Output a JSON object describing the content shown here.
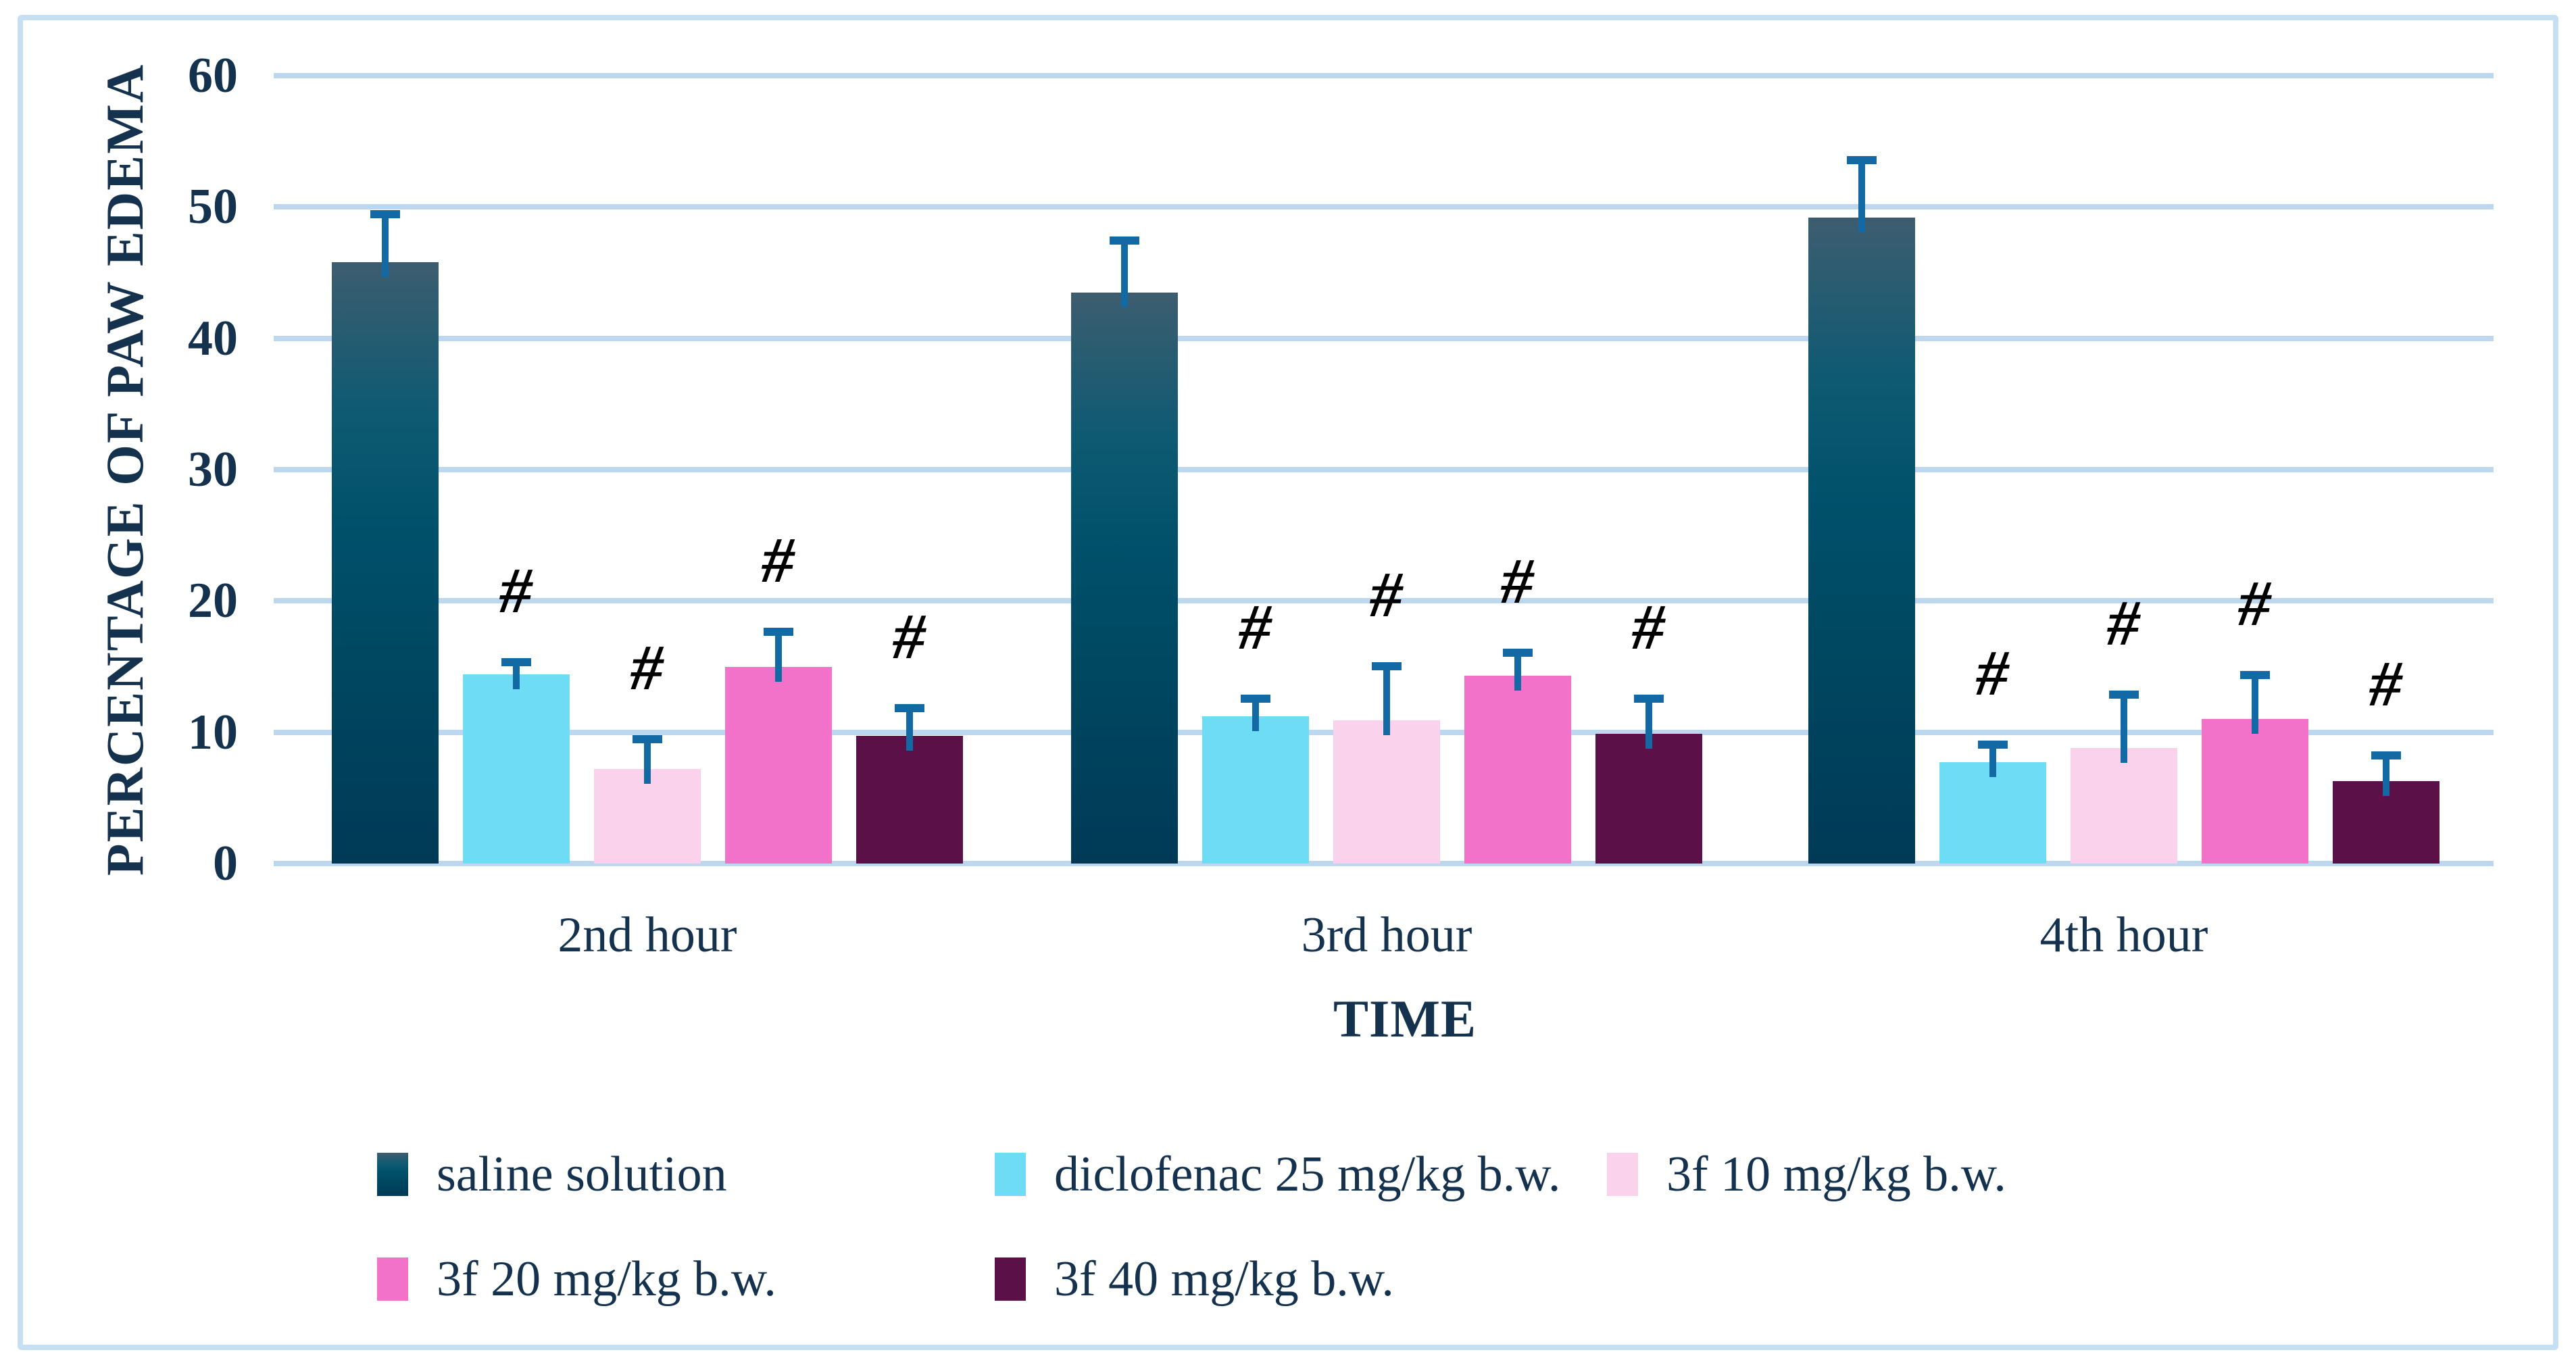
{
  "chart_data": {
    "type": "bar",
    "title": "",
    "ylabel": "PERCENTAGE OF PAW EDEMA",
    "xlabel": "TIME",
    "categories": [
      "2nd hour",
      "3rd hour",
      "4th hour"
    ],
    "y_ticks": [
      0,
      10,
      20,
      30,
      40,
      50,
      60
    ],
    "ylim": [
      0,
      60
    ],
    "grid": true,
    "legend_position": "bottom",
    "series": [
      {
        "name": "saline solution",
        "color": "#0E5A73",
        "gradient": [
          "#3D5D6F",
          "#0E5A73",
          "#00506B",
          "#00455F",
          "#003A57"
        ],
        "values": [
          45.8,
          43.5,
          49.2
        ],
        "error_plus": [
          3.7,
          4.0,
          4.4
        ],
        "annotations": [
          "",
          "",
          ""
        ]
      },
      {
        "name": "diclofenac 25 mg/kg b.w.",
        "color": "#6FDCF5",
        "values": [
          14.4,
          11.2,
          7.7
        ],
        "error_plus": [
          1.0,
          1.4,
          1.4
        ],
        "annotations": [
          "#",
          "#",
          "#"
        ]
      },
      {
        "name": "3f 10 mg/kg b.w.",
        "color": "#FBD2EC",
        "values": [
          7.2,
          10.9,
          8.8
        ],
        "error_plus": [
          2.3,
          4.2,
          4.1
        ],
        "annotations": [
          "#",
          "#",
          "#"
        ]
      },
      {
        "name": "3f 20 mg/kg b.w.",
        "color": "#F271C9",
        "values": [
          15.0,
          14.3,
          11.0
        ],
        "error_plus": [
          2.7,
          1.8,
          3.4
        ],
        "annotations": [
          "#",
          "#",
          "#"
        ]
      },
      {
        "name": "3f 40 mg/kg b.w.",
        "color": "#5C1048",
        "values": [
          9.7,
          9.9,
          6.3
        ],
        "error_plus": [
          2.2,
          2.7,
          2.0
        ],
        "annotations": [
          "#",
          "#",
          "#"
        ]
      }
    ],
    "style": {
      "gridline_color": "#BDD7EE",
      "border_color": "#C6DFF3",
      "error_bar_color": "#1269A4",
      "text_color": "#14324E",
      "annotation_color": "#000000",
      "background": "#FFFFFF"
    }
  }
}
